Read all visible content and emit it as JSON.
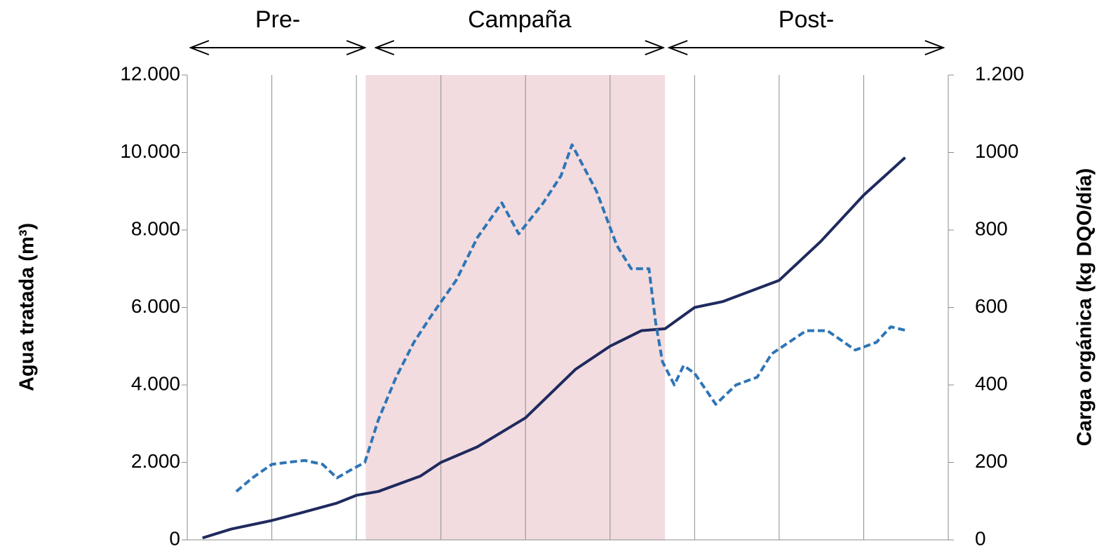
{
  "chart_data": {
    "type": "line",
    "ylabel": "Agua tratada (m³)",
    "y2label": "Carga orgánica (kg DQO/día)",
    "xlim": [
      0,
      9
    ],
    "xticks": [
      0,
      1,
      2,
      3,
      4,
      5,
      6,
      7,
      8,
      9
    ],
    "ylim": [
      0,
      12000
    ],
    "yticks": [
      0,
      {
        "value": 2000,
        "label": "2.000"
      },
      {
        "value": 4000,
        "label": "4.000"
      },
      {
        "value": 6000,
        "label": "6.000"
      },
      {
        "value": 8000,
        "label": "8.000"
      },
      {
        "value": 10000,
        "label": "10.000"
      },
      {
        "value": 12000,
        "label": "12.000"
      }
    ],
    "y2lim": [
      0,
      1200
    ],
    "y2ticks": [
      0,
      200,
      400,
      600,
      800,
      1000,
      {
        "value": 1200,
        "label": "1.200"
      }
    ],
    "grid": true,
    "shaded_range": [
      2.11,
      5.65
    ],
    "shaded_color": "#f2dcdf",
    "annotations": [
      {
        "text": "Pre-",
        "x_range": [
          0.04,
          2.1
        ]
      },
      {
        "text": "Campaña",
        "x_range": [
          2.23,
          5.63
        ]
      },
      {
        "text": "Post-",
        "x_range": [
          5.7,
          8.94
        ]
      }
    ],
    "series": [
      {
        "name": "Agua tratada",
        "color": "#1f2a5e",
        "dash": false,
        "x": [
          0.18,
          0.52,
          1.0,
          1.35,
          1.77,
          2.0,
          2.26,
          2.76,
          3.0,
          3.43,
          4.0,
          4.59,
          5.0,
          5.37,
          5.65,
          6.0,
          6.33,
          7.0,
          7.49,
          8.0,
          8.49
        ],
        "values": [
          50,
          280,
          500,
          700,
          950,
          1150,
          1250,
          1650,
          2000,
          2400,
          3150,
          4400,
          5000,
          5400,
          5450,
          6000,
          6150,
          6700,
          7700,
          8900,
          9870
        ]
      },
      {
        "name": "Carga orgánica",
        "color": "#2e75b6",
        "dash": true,
        "axis": "y2",
        "x": [
          0.58,
          0.77,
          1.0,
          1.18,
          1.39,
          1.6,
          1.77,
          1.93,
          2.1,
          2.26,
          2.47,
          2.68,
          2.89,
          3.18,
          3.43,
          3.72,
          3.92,
          4.21,
          4.42,
          4.55,
          4.84,
          5.08,
          5.25,
          5.46,
          5.54,
          5.62,
          5.76,
          5.87,
          6.0,
          6.25,
          6.49,
          6.74,
          6.91,
          7.32,
          7.57,
          7.9,
          8.15,
          8.32,
          8.51
        ],
        "values": [
          125,
          160,
          195,
          200,
          205,
          195,
          160,
          180,
          200,
          310,
          420,
          510,
          580,
          670,
          780,
          870,
          790,
          870,
          940,
          1020,
          900,
          760,
          700,
          700,
          560,
          460,
          400,
          450,
          430,
          350,
          400,
          420,
          480,
          540,
          540,
          490,
          510,
          550,
          540
        ]
      }
    ]
  }
}
